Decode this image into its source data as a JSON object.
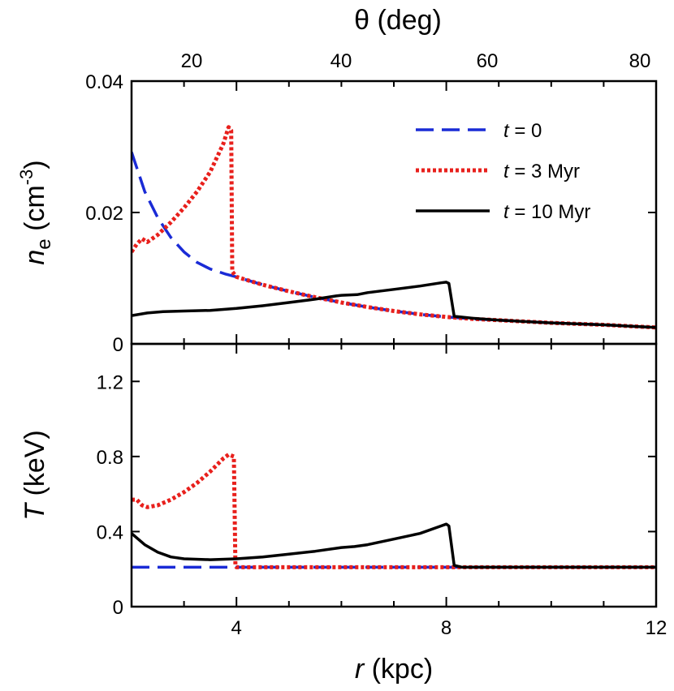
{
  "chart_data": {
    "type": "line",
    "top_axis": {
      "label": "θ (deg)",
      "ticks": [
        20,
        40,
        60,
        80
      ]
    },
    "x_axis": {
      "label_var": "r",
      "label_unit": " (kpc)",
      "range": [
        2,
        12
      ],
      "ticks": [
        4,
        8,
        12
      ],
      "minor_ticks": [
        3,
        5,
        6,
        7,
        9,
        10,
        11
      ]
    },
    "legend": {
      "placement": "top-right",
      "entries": [
        {
          "var": "t",
          "text": " = 0",
          "color": "#1a2bd6",
          "style": "dashed"
        },
        {
          "var": "t",
          "text": " = 3 Myr",
          "color": "#e8201c",
          "style": "dotted"
        },
        {
          "var": "t",
          "text": " = 10 Myr",
          "color": "#000000",
          "style": "solid"
        }
      ]
    },
    "panels": [
      {
        "id": "density",
        "ylabel_var": "n",
        "ylabel_sub": "e",
        "ylabel_unit_pre": " (cm",
        "ylabel_sup": "-3",
        "ylabel_unit_post": ")",
        "ylim": [
          0,
          0.04
        ],
        "yticks": [
          "0",
          "0.02",
          "0.04"
        ],
        "yticks_values": [
          0,
          0.02,
          0.04
        ],
        "series": [
          {
            "name": "t = 0",
            "color": "#1a2bd6",
            "style": "dashed",
            "points": [
              [
                2.0,
                0.0292
              ],
              [
                2.25,
                0.0232
              ],
              [
                2.5,
                0.0192
              ],
              [
                2.75,
                0.0162
              ],
              [
                3.0,
                0.014
              ],
              [
                3.25,
                0.0124
              ],
              [
                3.5,
                0.0114
              ],
              [
                3.8,
                0.0106
              ],
              [
                4.0,
                0.0102
              ],
              [
                4.5,
                0.009
              ],
              [
                5.0,
                0.008
              ],
              [
                5.5,
                0.0071
              ],
              [
                6.0,
                0.0063
              ],
              [
                6.5,
                0.0056
              ],
              [
                7.0,
                0.005
              ],
              [
                7.5,
                0.0045
              ],
              [
                8.0,
                0.0041
              ],
              [
                8.5,
                0.0038
              ],
              [
                9.0,
                0.0036
              ],
              [
                10.0,
                0.0032
              ],
              [
                11.0,
                0.0029
              ],
              [
                12.0,
                0.0025
              ]
            ]
          },
          {
            "name": "t = 3 Myr",
            "color": "#e8201c",
            "style": "dotted",
            "points": [
              [
                2.0,
                0.014
              ],
              [
                2.1,
                0.0152
              ],
              [
                2.2,
                0.016
              ],
              [
                2.3,
                0.0155
              ],
              [
                2.5,
                0.0166
              ],
              [
                2.75,
                0.0185
              ],
              [
                3.0,
                0.0207
              ],
              [
                3.25,
                0.0232
              ],
              [
                3.5,
                0.0262
              ],
              [
                3.75,
                0.0305
              ],
              [
                3.85,
                0.033
              ],
              [
                3.9,
                0.0325
              ],
              [
                3.92,
                0.011
              ],
              [
                4.0,
                0.0102
              ],
              [
                4.5,
                0.009
              ],
              [
                5.0,
                0.008
              ],
              [
                5.5,
                0.0071
              ],
              [
                6.0,
                0.0063
              ],
              [
                6.5,
                0.0056
              ],
              [
                7.0,
                0.005
              ],
              [
                7.5,
                0.0045
              ],
              [
                8.0,
                0.0041
              ],
              [
                8.5,
                0.0038
              ],
              [
                9.0,
                0.0036
              ],
              [
                10.0,
                0.0032
              ],
              [
                11.0,
                0.0029
              ],
              [
                12.0,
                0.0025
              ]
            ]
          },
          {
            "name": "t = 10 Myr",
            "color": "#000000",
            "style": "solid",
            "points": [
              [
                2.0,
                0.0043
              ],
              [
                2.3,
                0.0047
              ],
              [
                2.6,
                0.0049
              ],
              [
                3.0,
                0.005
              ],
              [
                3.5,
                0.0051
              ],
              [
                4.0,
                0.0054
              ],
              [
                4.5,
                0.0058
              ],
              [
                5.0,
                0.0063
              ],
              [
                5.5,
                0.0068
              ],
              [
                5.9,
                0.0073
              ],
              [
                6.0,
                0.0074
              ],
              [
                6.3,
                0.0075
              ],
              [
                6.5,
                0.0078
              ],
              [
                7.0,
                0.0083
              ],
              [
                7.5,
                0.0088
              ],
              [
                7.9,
                0.0093
              ],
              [
                8.0,
                0.0094
              ],
              [
                8.05,
                0.0092
              ],
              [
                8.15,
                0.0042
              ],
              [
                8.5,
                0.0039
              ],
              [
                9.0,
                0.0036
              ],
              [
                10.0,
                0.0032
              ],
              [
                11.0,
                0.0029
              ],
              [
                12.0,
                0.0025
              ]
            ]
          }
        ]
      },
      {
        "id": "temperature",
        "ylabel_var": "T",
        "ylabel_sub": "",
        "ylabel_unit_pre": " (keV)",
        "ylabel_sup": "",
        "ylabel_unit_post": "",
        "ylim": [
          0,
          1.4
        ],
        "yticks": [
          "0",
          "0.4",
          "0.8",
          "1.2"
        ],
        "yticks_values": [
          0,
          0.4,
          0.8,
          1.2
        ],
        "series": [
          {
            "name": "t = 0",
            "color": "#1a2bd6",
            "style": "dashed",
            "points": [
              [
                2.0,
                0.21
              ],
              [
                12.0,
                0.21
              ]
            ]
          },
          {
            "name": "t = 3 Myr",
            "color": "#e8201c",
            "style": "dotted",
            "points": [
              [
                2.0,
                0.57
              ],
              [
                2.1,
                0.57
              ],
              [
                2.2,
                0.54
              ],
              [
                2.3,
                0.53
              ],
              [
                2.5,
                0.54
              ],
              [
                2.75,
                0.57
              ],
              [
                3.0,
                0.61
              ],
              [
                3.25,
                0.66
              ],
              [
                3.5,
                0.72
              ],
              [
                3.75,
                0.79
              ],
              [
                3.85,
                0.81
              ],
              [
                3.95,
                0.8
              ],
              [
                3.98,
                0.22
              ],
              [
                4.0,
                0.21
              ],
              [
                12.0,
                0.21
              ]
            ]
          },
          {
            "name": "t = 10 Myr",
            "color": "#000000",
            "style": "solid",
            "points": [
              [
                2.0,
                0.39
              ],
              [
                2.25,
                0.33
              ],
              [
                2.5,
                0.29
              ],
              [
                2.75,
                0.265
              ],
              [
                3.0,
                0.255
              ],
              [
                3.5,
                0.25
              ],
              [
                4.0,
                0.255
              ],
              [
                4.5,
                0.265
              ],
              [
                5.0,
                0.28
              ],
              [
                5.5,
                0.295
              ],
              [
                6.0,
                0.315
              ],
              [
                6.25,
                0.32
              ],
              [
                6.5,
                0.33
              ],
              [
                7.0,
                0.36
              ],
              [
                7.5,
                0.39
              ],
              [
                7.9,
                0.43
              ],
              [
                8.0,
                0.44
              ],
              [
                8.05,
                0.43
              ],
              [
                8.15,
                0.22
              ],
              [
                8.3,
                0.21
              ],
              [
                12.0,
                0.21
              ]
            ]
          }
        ]
      }
    ]
  }
}
